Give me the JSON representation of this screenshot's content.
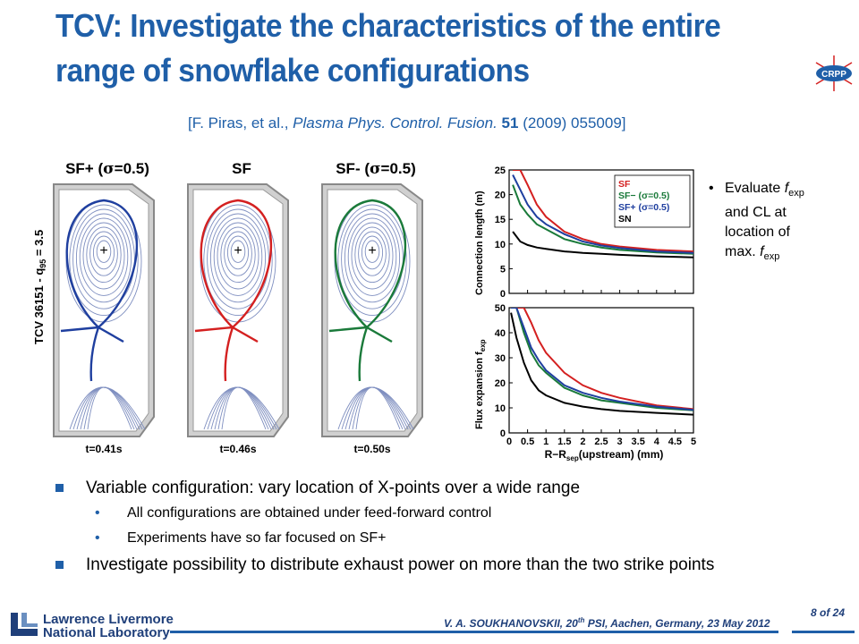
{
  "slide": {
    "title": "TCV:  Investigate the characteristics of the entire range of snowflake configurations",
    "citation": {
      "prefix": "[F. Piras, et al., ",
      "journal": "Plasma Phys. Control. Fusion.",
      "volume": "51",
      "suffix": " (2009) 055009]"
    },
    "logo_text": "CRPP",
    "colors": {
      "title": "#1f5fa8",
      "sf_plus": "#1f3f9f",
      "sf": "#d42020",
      "sf_minus": "#1a7a3a",
      "sn": "#000000"
    }
  },
  "equilibria": {
    "vertical_label": "TCV 36151  -  q",
    "vertical_label_sub": "95",
    "vertical_label_tail": " = 3.5",
    "panels": [
      {
        "name": "SF+ (",
        "sigma": "σ",
        "tail": "=0.5)",
        "time": "t=0.41s",
        "color": "#1f3f9f"
      },
      {
        "name": "SF",
        "sigma": "",
        "tail": "",
        "time": "t=0.46s",
        "color": "#d42020"
      },
      {
        "name": "SF- (",
        "sigma": "σ",
        "tail": "=0.5)",
        "time": "t=0.50s",
        "color": "#1a7a3a"
      }
    ]
  },
  "chart_data": [
    {
      "type": "line",
      "ylabel": "Connection length (m)",
      "ylim": [
        0,
        25
      ],
      "yticks": [
        "0",
        "5",
        "10",
        "15",
        "20",
        "25"
      ],
      "xlim": [
        0,
        5
      ],
      "legend": {
        "placement": "top-right",
        "entries": [
          "SF",
          "SF− (σ=0.5)",
          "SF+ (σ=0.5)",
          "SN"
        ]
      },
      "x": [
        0.1,
        0.3,
        0.5,
        0.75,
        1.0,
        1.5,
        2.0,
        2.5,
        3.0,
        4.0,
        5.0
      ],
      "series": [
        {
          "name": "SF",
          "color": "#d42020",
          "values": [
            25,
            25,
            22,
            18,
            15.5,
            12.5,
            11,
            10,
            9.5,
            8.8,
            8.5
          ]
        },
        {
          "name": "SF− (σ=0.5)",
          "color": "#1a7a3a",
          "values": [
            22,
            18,
            16,
            14,
            13,
            11,
            10,
            9.3,
            8.8,
            8.3,
            8.0
          ]
        },
        {
          "name": "SF+ (σ=0.5)",
          "color": "#1f3f9f",
          "values": [
            24,
            21,
            18,
            15.5,
            14,
            12,
            10.5,
            9.7,
            9.2,
            8.5,
            8.2
          ]
        },
        {
          "name": "SN",
          "color": "#000000",
          "values": [
            12.5,
            10.5,
            9.8,
            9.3,
            9.0,
            8.5,
            8.2,
            8.0,
            7.8,
            7.5,
            7.3
          ]
        }
      ]
    },
    {
      "type": "line",
      "ylabel": "Flux expansion f",
      "ylabel_sub": "exp",
      "xlabel": "R−R",
      "xlabel_sub": "sep",
      "xlabel_tail": "(upstream) (mm)",
      "ylim": [
        0,
        50
      ],
      "yticks": [
        "0",
        "10",
        "20",
        "30",
        "40",
        "50"
      ],
      "xlim": [
        0,
        5
      ],
      "xticks": [
        "0",
        "0.5",
        "1",
        "1.5",
        "2",
        "2.5",
        "3",
        "3.5",
        "4",
        "4.5",
        "5"
      ],
      "x": [
        0.05,
        0.2,
        0.4,
        0.6,
        0.8,
        1.0,
        1.5,
        2.0,
        2.5,
        3.0,
        4.0,
        5.0
      ],
      "series": [
        {
          "name": "SF",
          "color": "#d42020",
          "values": [
            50,
            50,
            50,
            44,
            37,
            32,
            24,
            19,
            16,
            14,
            11,
            9.5
          ]
        },
        {
          "name": "SF− (σ=0.5)",
          "color": "#1a7a3a",
          "values": [
            50,
            50,
            40,
            32,
            27,
            24,
            18,
            15,
            13,
            12,
            10,
            9
          ]
        },
        {
          "name": "SF+ (σ=0.5)",
          "color": "#1f3f9f",
          "values": [
            50,
            50,
            42,
            34,
            29,
            25,
            19,
            16,
            14,
            12.5,
            10.5,
            9.2
          ]
        },
        {
          "name": "SN",
          "color": "#000000",
          "values": [
            48,
            38,
            28,
            21,
            17,
            15,
            12,
            10.5,
            9.5,
            8.8,
            8,
            7.3
          ]
        }
      ]
    }
  ],
  "side_note": {
    "bullet": "•",
    "line1_a": "Evaluate ",
    "line1_f": "f",
    "line1_sub": "exp",
    "line2": "and CL at",
    "line3": "location of",
    "line4_a": "max. ",
    "line4_f": "f",
    "line4_sub": "exp"
  },
  "bullets": [
    {
      "level": 1,
      "text": "Variable configuration: vary location of X-points over a wide range"
    },
    {
      "level": 2,
      "marker": "•",
      "text": "All configurations are obtained under feed-forward control"
    },
    {
      "level": 2,
      "marker": "•",
      "text": "Experiments have so far focused on SF+"
    },
    {
      "level": 1,
      "text": "Investigate possibility to distribute exhaust power on more than the two strike points"
    }
  ],
  "footer": {
    "lab_line1": "Lawrence Livermore",
    "lab_line2": "National Laboratory",
    "credit_a": "V. A. SOUKHANOVSKII, 20",
    "credit_sup": "th",
    "credit_b": " PSI, Aachen, Germany, 23 May 2012",
    "page": "8 of 24"
  }
}
